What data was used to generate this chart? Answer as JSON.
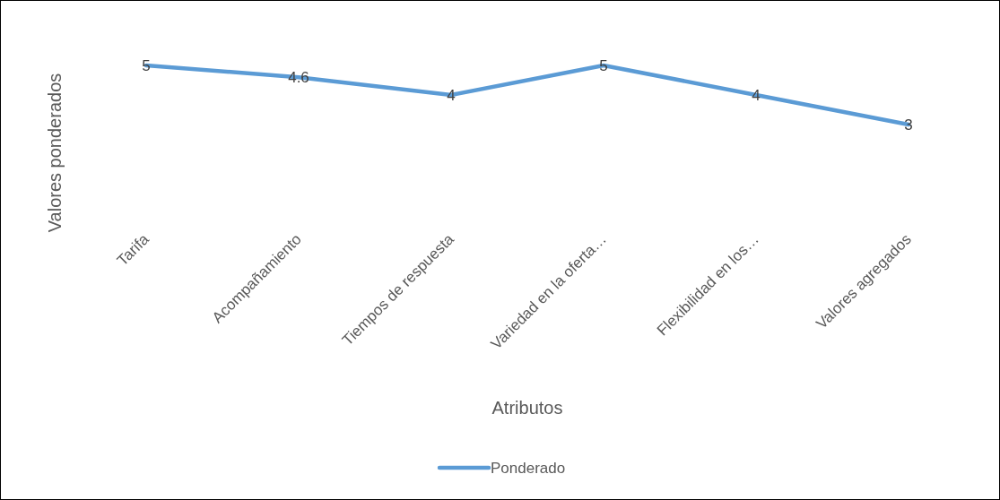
{
  "chart_data": {
    "type": "line",
    "xlabel": "Atributos",
    "ylabel": "Valores ponderados",
    "categories": [
      "Tarifa",
      "Acompañamiento",
      "Tiempos de respuesta",
      "Variedad en la oferta…",
      "Flexibilidad en los…",
      "Valores agregados"
    ],
    "series": [
      {
        "name": "Ponderado",
        "color": "#5b9bd5",
        "values": [
          5,
          4.6,
          4,
          5,
          4,
          3
        ]
      }
    ],
    "data_labels": true,
    "legend": "bottom",
    "grid": false,
    "marker": "none",
    "line_style": "solid"
  }
}
